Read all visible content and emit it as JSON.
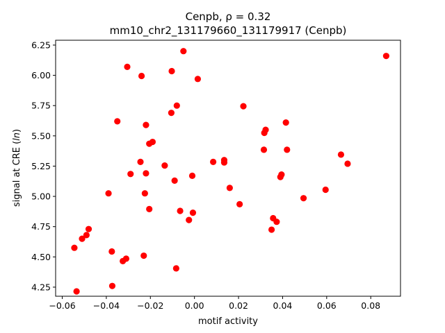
{
  "chart_data": {
    "type": "scatter",
    "title_line1": "Cenpb, ρ = 0.32",
    "title_line2": "mm10_chr2_131179660_131179917 (Cenpb)",
    "xlabel": "motif activity",
    "ylabel": "signal at CRE (ln)",
    "xlim": [
      -0.063,
      0.0935
    ],
    "ylim": [
      4.175,
      6.29
    ],
    "xticks": [
      -0.06,
      -0.04,
      -0.02,
      0.0,
      0.02,
      0.04,
      0.06,
      0.08
    ],
    "xtick_labels": [
      "−0.06",
      "−0.04",
      "−0.02",
      "0.00",
      "0.02",
      "0.04",
      "0.06",
      "0.08"
    ],
    "yticks": [
      4.25,
      4.5,
      4.75,
      5.0,
      5.25,
      5.5,
      5.75,
      6.0,
      6.25
    ],
    "ytick_labels": [
      "4.25",
      "4.50",
      "4.75",
      "5.00",
      "5.25",
      "5.50",
      "5.75",
      "6.00",
      "6.25"
    ],
    "grid": false,
    "marker_color": "#ff0000",
    "points": [
      {
        "x": -0.0545,
        "y": 4.575
      },
      {
        "x": -0.0535,
        "y": 4.215
      },
      {
        "x": -0.051,
        "y": 4.65
      },
      {
        "x": -0.049,
        "y": 4.68
      },
      {
        "x": -0.048,
        "y": 4.73
      },
      {
        "x": -0.039,
        "y": 5.025
      },
      {
        "x": -0.0375,
        "y": 4.545
      },
      {
        "x": -0.0373,
        "y": 4.26
      },
      {
        "x": -0.035,
        "y": 5.62
      },
      {
        "x": -0.0325,
        "y": 4.465
      },
      {
        "x": -0.031,
        "y": 4.485
      },
      {
        "x": -0.0305,
        "y": 6.07
      },
      {
        "x": -0.029,
        "y": 5.185
      },
      {
        "x": -0.0245,
        "y": 5.285
      },
      {
        "x": -0.024,
        "y": 5.995
      },
      {
        "x": -0.023,
        "y": 4.51
      },
      {
        "x": -0.0225,
        "y": 5.025
      },
      {
        "x": -0.022,
        "y": 5.19
      },
      {
        "x": -0.022,
        "y": 5.59
      },
      {
        "x": -0.0205,
        "y": 5.435
      },
      {
        "x": -0.0205,
        "y": 4.895
      },
      {
        "x": -0.019,
        "y": 5.45
      },
      {
        "x": -0.0135,
        "y": 5.255
      },
      {
        "x": -0.0105,
        "y": 5.69
      },
      {
        "x": -0.0103,
        "y": 6.035
      },
      {
        "x": -0.009,
        "y": 5.13
      },
      {
        "x": -0.0083,
        "y": 4.405
      },
      {
        "x": -0.008,
        "y": 5.75
      },
      {
        "x": -0.0065,
        "y": 4.88
      },
      {
        "x": -0.005,
        "y": 6.2
      },
      {
        "x": -0.0025,
        "y": 4.805
      },
      {
        "x": -0.001,
        "y": 5.17
      },
      {
        "x": -0.0007,
        "y": 4.865
      },
      {
        "x": 0.0015,
        "y": 5.97
      },
      {
        "x": 0.0085,
        "y": 5.285
      },
      {
        "x": 0.0135,
        "y": 5.3
      },
      {
        "x": 0.0135,
        "y": 5.28
      },
      {
        "x": 0.016,
        "y": 5.07
      },
      {
        "x": 0.0205,
        "y": 4.935
      },
      {
        "x": 0.0222,
        "y": 5.745
      },
      {
        "x": 0.0315,
        "y": 5.385
      },
      {
        "x": 0.0317,
        "y": 5.525
      },
      {
        "x": 0.0323,
        "y": 5.55
      },
      {
        "x": 0.035,
        "y": 4.725
      },
      {
        "x": 0.0357,
        "y": 4.82
      },
      {
        "x": 0.0373,
        "y": 4.79
      },
      {
        "x": 0.039,
        "y": 5.16
      },
      {
        "x": 0.0395,
        "y": 5.18
      },
      {
        "x": 0.0415,
        "y": 5.61
      },
      {
        "x": 0.042,
        "y": 5.385
      },
      {
        "x": 0.0495,
        "y": 4.985
      },
      {
        "x": 0.0595,
        "y": 5.055
      },
      {
        "x": 0.0665,
        "y": 5.345
      },
      {
        "x": 0.0695,
        "y": 5.27
      },
      {
        "x": 0.087,
        "y": 6.16
      }
    ]
  }
}
